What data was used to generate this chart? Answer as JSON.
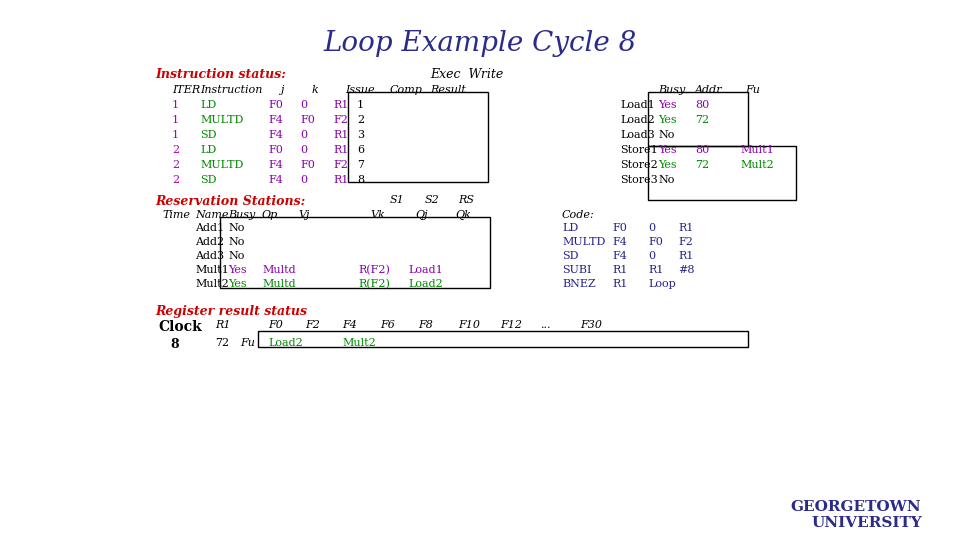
{
  "title": "Loop Example Cycle 8",
  "title_color": "#2B2B8B",
  "background": "white",
  "instr_status_label": "Instruction status:",
  "exec_write_label": "Exec  Write",
  "instr_rows": [
    [
      "1",
      "LD",
      "F0",
      "0",
      "R1",
      "1"
    ],
    [
      "1",
      "MULTD",
      "F4",
      "F0",
      "F2",
      "2"
    ],
    [
      "1",
      "SD",
      "F4",
      "0",
      "R1",
      "3"
    ],
    [
      "2",
      "LD",
      "F0",
      "0",
      "R1",
      "6"
    ],
    [
      "2",
      "MULTD",
      "F4",
      "F0",
      "F2",
      "7"
    ],
    [
      "2",
      "SD",
      "F4",
      "0",
      "R1",
      "8"
    ]
  ],
  "fu_rows": [
    [
      "Load1",
      "Yes",
      "80",
      ""
    ],
    [
      "Load2",
      "Yes",
      "72",
      ""
    ],
    [
      "Load3",
      "No",
      "",
      ""
    ],
    [
      "Store1",
      "Yes",
      "80",
      "Mult1"
    ],
    [
      "Store2",
      "Yes",
      "72",
      "Mult2"
    ],
    [
      "Store3",
      "No",
      "",
      ""
    ]
  ],
  "rs_label": "Reservation Stations:",
  "rs_rows": [
    [
      "Add1",
      "No",
      "",
      "",
      "",
      ""
    ],
    [
      "Add2",
      "No",
      "",
      "",
      "",
      ""
    ],
    [
      "Add3",
      "No",
      "",
      "",
      "",
      ""
    ],
    [
      "Mult1",
      "Yes",
      "Multd",
      "",
      "R(F2)",
      "Load1"
    ],
    [
      "Mult2",
      "Yes",
      "Multd",
      "",
      "R(F2)",
      "Load2"
    ]
  ],
  "code_label": "Code:",
  "code_rows": [
    [
      "LD",
      "F0",
      "0",
      "R1"
    ],
    [
      "MULTD",
      "F4",
      "F0",
      "F2"
    ],
    [
      "SD",
      "F4",
      "0",
      "R1"
    ],
    [
      "SUBI",
      "R1",
      "R1",
      "#8"
    ],
    [
      "BNEZ",
      "R1",
      "Loop",
      ""
    ]
  ],
  "reg_label": "Register result status",
  "reg_headers": [
    "F0",
    "F2",
    "F4",
    "F6",
    "F8",
    "F10",
    "F12",
    "...",
    "F30"
  ],
  "reg_fu_vals": [
    "Load2",
    "",
    "Mult2",
    "",
    "",
    "",
    "",
    "",
    ""
  ],
  "green": "#008800",
  "purple": "#8800AA",
  "magenta": "#AA00AA",
  "navy": "#2B2B8B",
  "red": "#CC0000",
  "darkblue": "#22228B"
}
